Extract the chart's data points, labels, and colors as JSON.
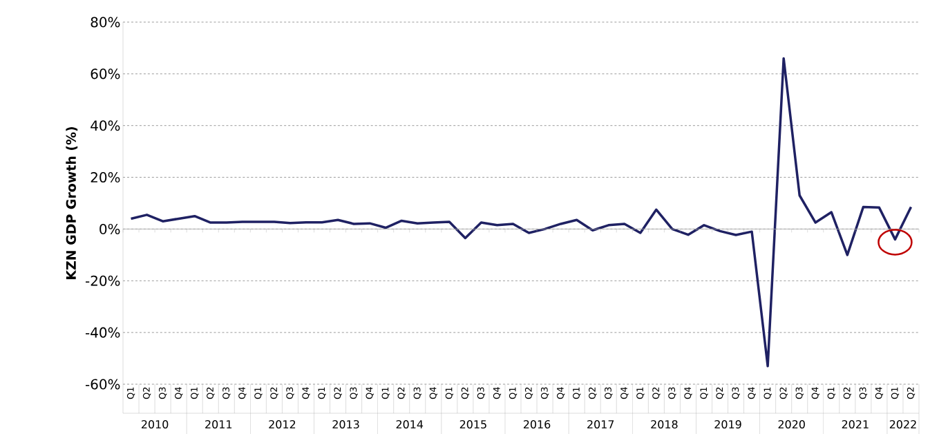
{
  "chart_data": {
    "type": "line",
    "ylabel": "KZN GDP Growth (%)",
    "categories": [
      "Q1",
      "Q2",
      "Q3",
      "Q4",
      "Q1",
      "Q2",
      "Q3",
      "Q4",
      "Q1",
      "Q2",
      "Q3",
      "Q4",
      "Q1",
      "Q2",
      "Q3",
      "Q4",
      "Q1",
      "Q2",
      "Q3",
      "Q4",
      "Q1",
      "Q2",
      "Q3",
      "Q4",
      "Q1",
      "Q2",
      "Q3",
      "Q4",
      "Q1",
      "Q2",
      "Q3",
      "Q4",
      "Q1",
      "Q2",
      "Q3",
      "Q4",
      "Q1",
      "Q2",
      "Q3",
      "Q4",
      "Q1",
      "Q2",
      "Q3",
      "Q4",
      "Q1",
      "Q2",
      "Q3",
      "Q4",
      "Q1",
      "Q2"
    ],
    "series": [
      {
        "color": "#1f2163",
        "values": [
          4,
          5.5,
          3,
          4,
          5,
          2.5,
          2.5,
          2.8,
          2.8,
          2.8,
          2.3,
          2.6,
          2.6,
          3.5,
          2,
          2.2,
          0.5,
          3.2,
          2.2,
          2.5,
          2.8,
          -3.5,
          2.5,
          1.5,
          2,
          -1.5,
          0,
          2,
          3.5,
          -0.5,
          1.5,
          2,
          -1.5,
          7.5,
          0,
          -2.2,
          1.5,
          -0.8,
          -2.3,
          -1,
          -53,
          66,
          13,
          2.5,
          6.5,
          -10,
          8.5,
          8.3,
          -4,
          8.5
        ]
      }
    ],
    "annotations": [
      "2010",
      "2011",
      "2012",
      "2013",
      "2014",
      "2015",
      "2016",
      "2017",
      "2018",
      "2019",
      "2020",
      "2021",
      "2022"
    ],
    "ylim": [
      -60,
      80
    ],
    "yticks": [
      {
        "value": -60,
        "label": "-60%"
      },
      {
        "value": -40,
        "label": "-40%"
      },
      {
        "value": -20,
        "label": "-20%"
      },
      {
        "value": 0,
        "label": "0%"
      },
      {
        "value": 20,
        "label": "20%"
      },
      {
        "value": 40,
        "label": "40%"
      },
      {
        "value": 60,
        "label": "60%"
      },
      {
        "value": 80,
        "label": "80%"
      }
    ],
    "grid": "y",
    "marker": "none",
    "line_style": "solid"
  }
}
